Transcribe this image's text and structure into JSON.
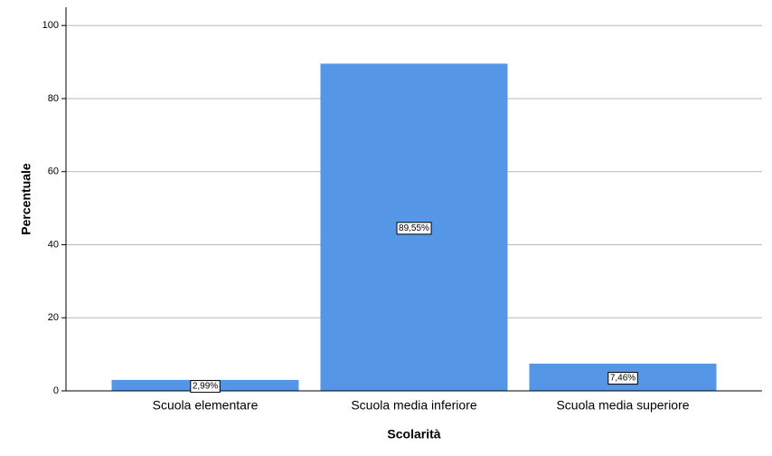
{
  "chart_data": {
    "type": "bar",
    "x_label": "Scolarità",
    "y_label": "Percentuale",
    "categories": [
      "Scuola elementare",
      "Scuola media inferiore",
      "Scuola media superiore"
    ],
    "values": [
      2.99,
      89.55,
      7.46
    ],
    "value_labels": [
      "2,99%",
      "89,55%",
      "7,46%"
    ],
    "color": "#5596e6",
    "ylim": [
      0,
      105
    ],
    "yticks": [
      0,
      20,
      40,
      60,
      80,
      100
    ],
    "grid": true
  }
}
